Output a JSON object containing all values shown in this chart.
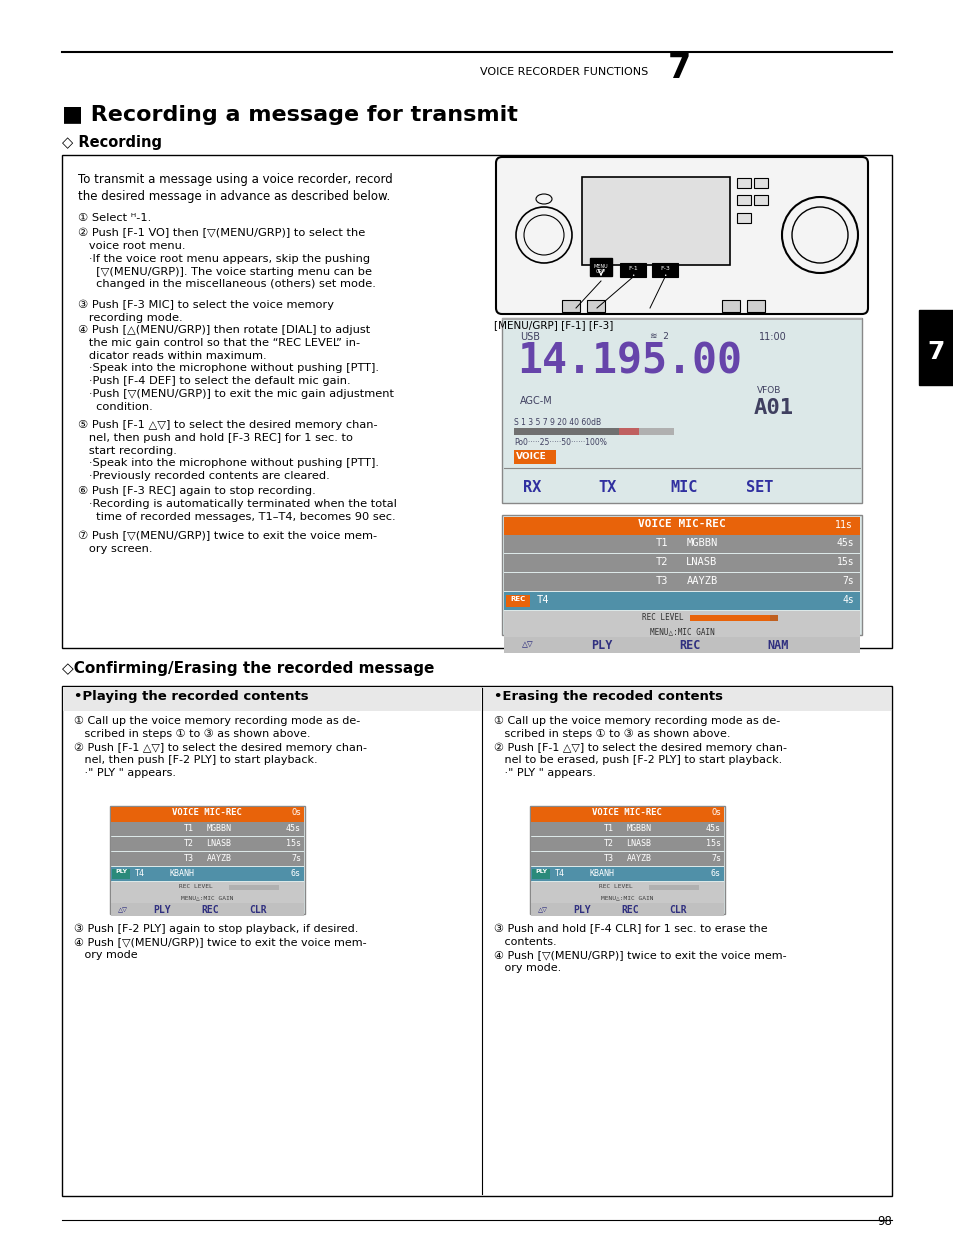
{
  "page_bg": "#ffffff",
  "header_text": "VOICE RECORDER FUNCTIONS",
  "header_number": "7",
  "main_title": "■ Recording a message for transmit",
  "section1_title": "◇ Recording",
  "section2_title": "◇Confirming/Erasing the recorded message",
  "playing_title": "•Playing the recorded contents",
  "erasing_title": "•Erasing the recoded contents",
  "page_number": "98",
  "tab_number": "7",
  "orange_color": "#e8630a",
  "teal_color": "#2a8a7a",
  "gray_row": "#909090",
  "blue_row": "#5090a8",
  "freq_purple": "#6644aa",
  "screen_bg": "#dce8e8",
  "radio_bg": "#f4f4f4"
}
